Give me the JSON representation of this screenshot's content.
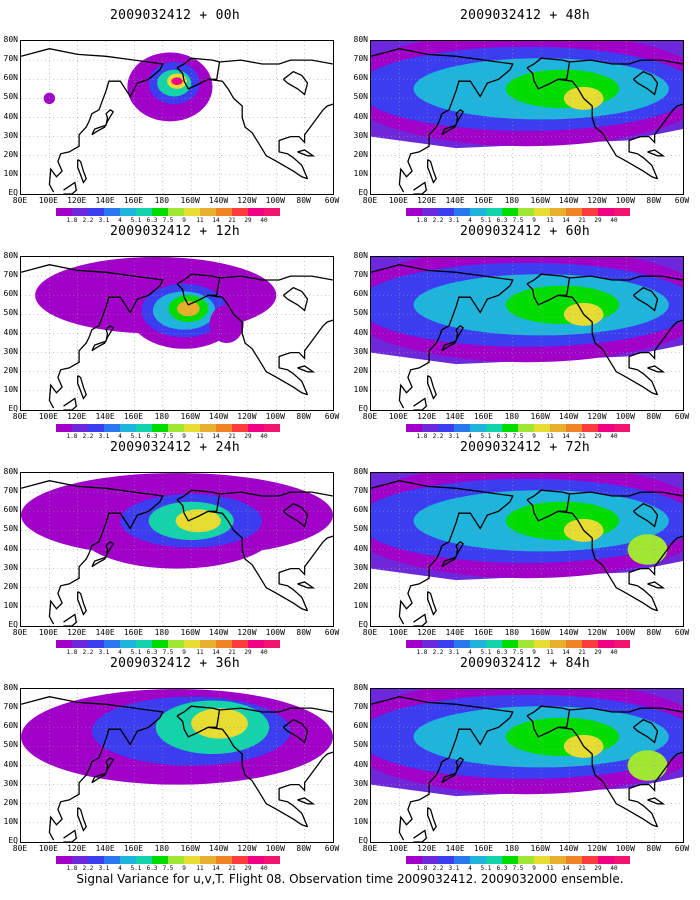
{
  "panels": [
    {
      "id": "p00",
      "title": "2009032412 + 00h",
      "level": 0
    },
    {
      "id": "p48",
      "title": "2009032412 + 48h",
      "level": 4
    },
    {
      "id": "p12",
      "title": "2009032412 + 12h",
      "level": 1
    },
    {
      "id": "p60",
      "title": "2009032412 + 60h",
      "level": 5
    },
    {
      "id": "p24",
      "title": "2009032412 + 24h",
      "level": 2
    },
    {
      "id": "p72",
      "title": "2009032412 + 72h",
      "level": 6
    },
    {
      "id": "p36",
      "title": "2009032412 + 36h",
      "level": 3
    },
    {
      "id": "p84",
      "title": "2009032412 + 84h",
      "level": 7
    }
  ],
  "lat_labels": [
    "80N",
    "70N",
    "60N",
    "50N",
    "40N",
    "30N",
    "20N",
    "10N",
    "EQ"
  ],
  "lon_labels": [
    "80E",
    "100E",
    "120E",
    "140E",
    "160E",
    "180",
    "160W",
    "140W",
    "120W",
    "100W",
    "80W",
    "60W"
  ],
  "colorbar": {
    "labels": [
      "1.8",
      "2.2",
      "3.1",
      "4",
      "5.1",
      "6.3",
      "7.5",
      "9",
      "11",
      "14",
      "21",
      "29",
      "40"
    ],
    "colors": [
      "#a000c8",
      "#6e28dc",
      "#3c3cf0",
      "#2878f0",
      "#1eb4dc",
      "#14d2aa",
      "#00dc00",
      "#a0e632",
      "#e6dc32",
      "#e6af2d",
      "#f08228",
      "#fa3c3c",
      "#f00082"
    ]
  },
  "footer": "Signal Variance for u,v,T. Flight 08. Observation time 2009032412. 2009032000 ensemble."
}
